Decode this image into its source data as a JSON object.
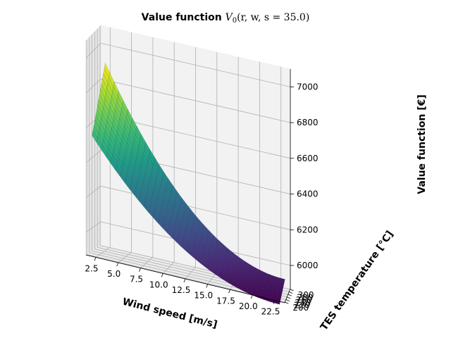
{
  "chart_data": {
    "type": "surface3d",
    "title_prefix": "Value function ",
    "title_math": "V",
    "title_sub": "0",
    "title_args": "(r, w, s = 35.0)",
    "xlabel": "Wind speed [m/s]",
    "ylabel": "TES temperature [°C]",
    "zlabel": "Value function [€]",
    "x_ticks": [
      "2.5",
      "5.0",
      "7.5",
      "10.0",
      "12.5",
      "15.0",
      "17.5",
      "20.0",
      "22.5"
    ],
    "y_ticks": [
      "200",
      "220",
      "240",
      "260",
      "280",
      "300"
    ],
    "z_ticks": [
      "6000",
      "6200",
      "6400",
      "6600",
      "6800",
      "7000"
    ],
    "xlim": [
      1.4,
      23.6
    ],
    "ylim": [
      195,
      305
    ],
    "zlim": [
      5870,
      7100
    ],
    "grid": true,
    "colormap": "viridis",
    "corner_values": {
      "x_min_y_min": 6560,
      "x_max_y_min": 5850,
      "x_min_y_max": 6900,
      "x_max_y_max": 5920
    },
    "colors": {
      "low": "#440154",
      "high": "#fde725"
    }
  }
}
